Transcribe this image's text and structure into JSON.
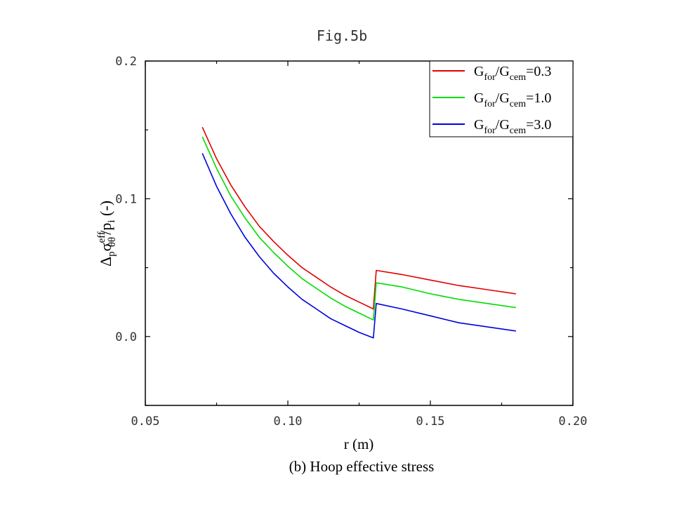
{
  "figure_title": "Fig.5b",
  "caption": "(b) Hoop effective stress",
  "chart_data": {
    "type": "line",
    "title": "Fig.5b",
    "xlabel": "r (m)",
    "ylabel": {
      "main": "Δ",
      "sub1": "p",
      "sigma": "σ",
      "sup": "eff",
      "sub2": "θθ",
      "slash": "/p",
      "sub3": "i",
      "tail": " (-)"
    },
    "xlim": [
      0.05,
      0.2
    ],
    "ylim": [
      -0.05,
      0.2
    ],
    "xticks": [
      0.05,
      0.1,
      0.15,
      0.2
    ],
    "xtick_labels": [
      "0.05",
      "0.10",
      "0.15",
      "0.20"
    ],
    "yticks": [
      0.0,
      0.1,
      0.2
    ],
    "ytick_labels": [
      "0.0",
      "0.1",
      "0.2"
    ],
    "grid": false,
    "legend_position": "top-right",
    "interface_r": 0.131,
    "series": [
      {
        "name": {
          "a": "G",
          "a_sub": "for",
          "b": "/G",
          "b_sub": "cem",
          "c": "=0.3"
        },
        "color": "#e00000",
        "points": [
          [
            0.07,
            0.152
          ],
          [
            0.075,
            0.129
          ],
          [
            0.08,
            0.11
          ],
          [
            0.085,
            0.094
          ],
          [
            0.09,
            0.08
          ],
          [
            0.095,
            0.069
          ],
          [
            0.1,
            0.059
          ],
          [
            0.105,
            0.05
          ],
          [
            0.11,
            0.043
          ],
          [
            0.115,
            0.036
          ],
          [
            0.12,
            0.03
          ],
          [
            0.125,
            0.025
          ],
          [
            0.13,
            0.02
          ],
          [
            0.131,
            0.048
          ],
          [
            0.14,
            0.045
          ],
          [
            0.15,
            0.041
          ],
          [
            0.16,
            0.037
          ],
          [
            0.17,
            0.034
          ],
          [
            0.18,
            0.031
          ]
        ]
      },
      {
        "name": {
          "a": "G",
          "a_sub": "for",
          "b": "/G",
          "b_sub": "cem",
          "c": "=1.0"
        },
        "color": "#00dd00",
        "points": [
          [
            0.07,
            0.145
          ],
          [
            0.075,
            0.122
          ],
          [
            0.08,
            0.102
          ],
          [
            0.085,
            0.086
          ],
          [
            0.09,
            0.072
          ],
          [
            0.095,
            0.061
          ],
          [
            0.1,
            0.051
          ],
          [
            0.105,
            0.042
          ],
          [
            0.11,
            0.035
          ],
          [
            0.115,
            0.028
          ],
          [
            0.12,
            0.022
          ],
          [
            0.125,
            0.017
          ],
          [
            0.13,
            0.012
          ],
          [
            0.131,
            0.039
          ],
          [
            0.14,
            0.036
          ],
          [
            0.15,
            0.031
          ],
          [
            0.16,
            0.027
          ],
          [
            0.17,
            0.024
          ],
          [
            0.18,
            0.021
          ]
        ]
      },
      {
        "name": {
          "a": "G",
          "a_sub": "for",
          "b": "/G",
          "b_sub": "cem",
          "c": "=3.0"
        },
        "color": "#0000e0",
        "points": [
          [
            0.07,
            0.133
          ],
          [
            0.075,
            0.109
          ],
          [
            0.08,
            0.089
          ],
          [
            0.085,
            0.072
          ],
          [
            0.09,
            0.058
          ],
          [
            0.095,
            0.046
          ],
          [
            0.1,
            0.036
          ],
          [
            0.105,
            0.027
          ],
          [
            0.11,
            0.02
          ],
          [
            0.115,
            0.013
          ],
          [
            0.12,
            0.008
          ],
          [
            0.125,
            0.003
          ],
          [
            0.13,
            -0.001
          ],
          [
            0.131,
            0.024
          ],
          [
            0.14,
            0.02
          ],
          [
            0.15,
            0.015
          ],
          [
            0.16,
            0.01
          ],
          [
            0.17,
            0.007
          ],
          [
            0.18,
            0.004
          ]
        ]
      }
    ]
  }
}
